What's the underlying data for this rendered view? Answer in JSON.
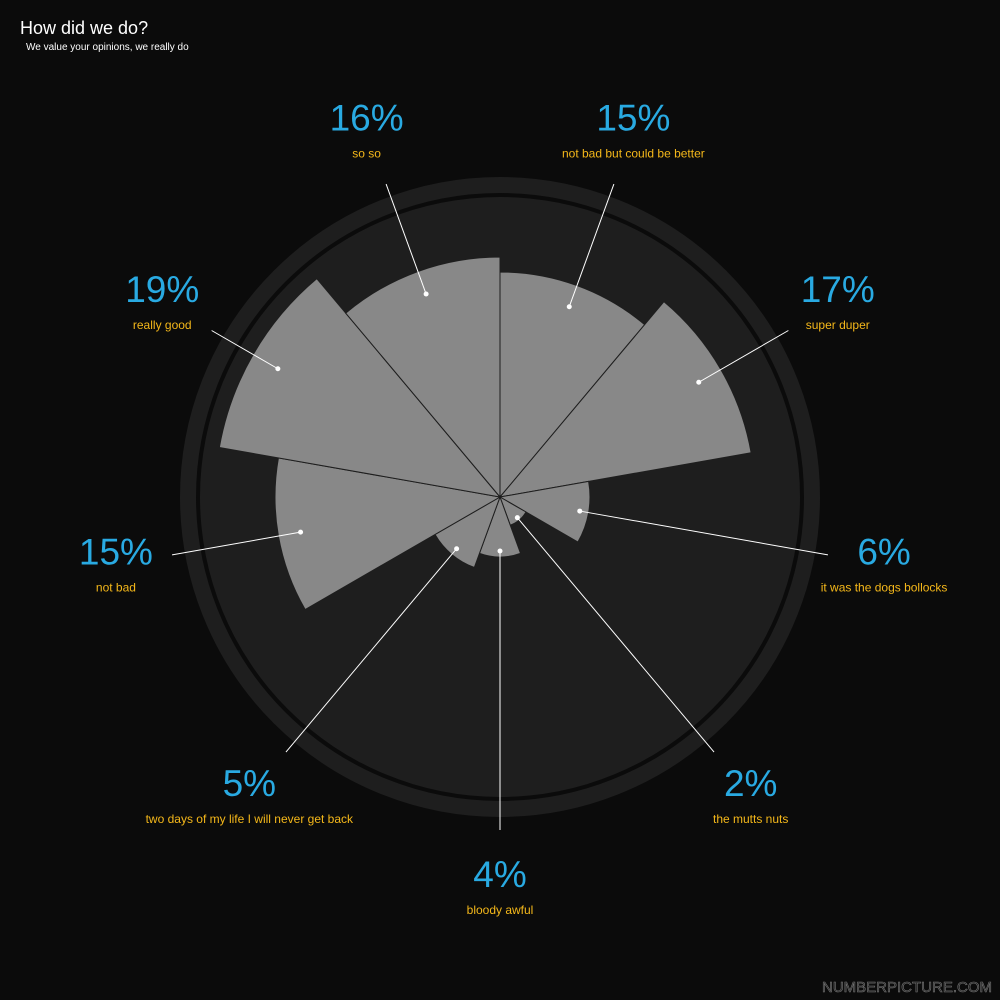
{
  "chart_data": {
    "type": "rose",
    "title": "How did we do?",
    "subtitle": "We value your opinions, we really do",
    "source": "NUMBERPICTURE.COM",
    "categories": [
      "not bad but could be better",
      "super duper",
      "it was the dogs bollocks",
      "the mutts nuts",
      "bloody awful",
      "two days of my life I will never get back",
      "not bad",
      "really good",
      "so so"
    ],
    "values": [
      15,
      17,
      6,
      2,
      4,
      5,
      15,
      19,
      16
    ],
    "value_labels": [
      "15%",
      "17%",
      "6%",
      "2%",
      "4%",
      "5%",
      "15%",
      "19%",
      "16%"
    ],
    "rlim": [
      0,
      20
    ],
    "color": "#888888"
  }
}
